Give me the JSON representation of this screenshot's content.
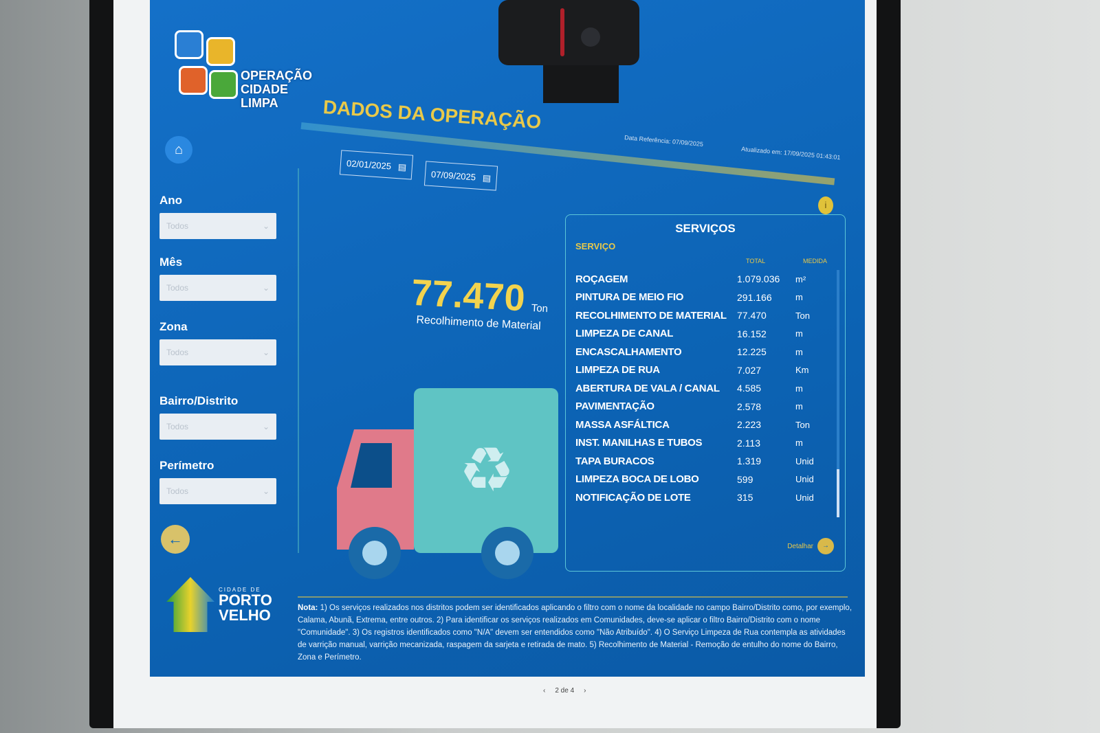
{
  "app": {
    "logo_text": "OPERAÇÃO CIDADE LIMPA",
    "title": "DADOS DA OPERAÇÃO"
  },
  "meta": {
    "data_referencia": "Data Referência: 07/09/2025",
    "atualizado": "Atualizado em: 17/09/2025 01:43:01"
  },
  "dates": {
    "start": "02/01/2025",
    "end": "07/09/2025"
  },
  "sidebar": {
    "filters": [
      {
        "label": "Ano",
        "value": "Todos"
      },
      {
        "label": "Mês",
        "value": "Todos"
      },
      {
        "label": "Zona",
        "value": "Todos"
      },
      {
        "label": "Bairro/Distrito",
        "value": "Todos"
      },
      {
        "label": "Perímetro",
        "value": "Todos"
      }
    ],
    "city_logo": {
      "small": "CIDADE DE",
      "line1": "PORTO",
      "line2": "VELHO"
    }
  },
  "kpi": {
    "value": "77.470",
    "unit": "Ton",
    "caption": "Recolhimento de Material"
  },
  "services": {
    "title": "SERVIÇOS",
    "col_service": "SERVIÇO",
    "col_total": "TOTAL",
    "col_unit": "MEDIDA",
    "rows": [
      {
        "name": "ROÇAGEM",
        "total": "1.079.036",
        "unit": "m²"
      },
      {
        "name": "PINTURA DE MEIO FIO",
        "total": "291.166",
        "unit": "m"
      },
      {
        "name": "RECOLHIMENTO DE MATERIAL",
        "total": "77.470",
        "unit": "Ton"
      },
      {
        "name": "LIMPEZA DE CANAL",
        "total": "16.152",
        "unit": "m"
      },
      {
        "name": "ENCASCALHAMENTO",
        "total": "12.225",
        "unit": "m"
      },
      {
        "name": "LIMPEZA DE RUA",
        "total": "7.027",
        "unit": "Km"
      },
      {
        "name": "ABERTURA DE VALA / CANAL",
        "total": "4.585",
        "unit": "m"
      },
      {
        "name": "PAVIMENTAÇÃO",
        "total": "2.578",
        "unit": "m"
      },
      {
        "name": "MASSA ASFÁLTICA",
        "total": "2.223",
        "unit": "Ton"
      },
      {
        "name": "INST. MANILHAS E TUBOS",
        "total": "2.113",
        "unit": "m"
      },
      {
        "name": "TAPA BURACOS",
        "total": "1.319",
        "unit": "Unid"
      },
      {
        "name": "LIMPEZA BOCA DE LOBO",
        "total": "599",
        "unit": "Unid"
      },
      {
        "name": "NOTIFICAÇÃO DE LOTE",
        "total": "315",
        "unit": "Unid"
      }
    ],
    "detail_label": "Detalhar"
  },
  "note": {
    "label": "Nota:",
    "text": "1) Os serviços realizados nos distritos podem ser identificados aplicando o filtro com o nome da localidade no campo Bairro/Distrito como, por exemplo, Calama, Abunã, Extrema, entre outros. 2) Para identificar os serviços realizados em Comunidades, deve-se aplicar o filtro Bairro/Distrito com o nome \"Comunidade\". 3) Os registros identificados como \"N/A\" devem ser entendidos como \"Não Atribuído\". 4) O Serviço Limpeza de Rua contempla as atividades de varrição manual, varrição mecanizada, raspagem da sarjeta e retirada de mato. 5) Recolhimento de Material - Remoção de entulho do nome do Bairro, Zona e Perímetro."
  },
  "pager": {
    "label": "2 de 4",
    "prev": "‹",
    "next": "›"
  },
  "colors": {
    "background": "#0c63b4",
    "accent": "#e8c94a",
    "border": "#5cc6d8"
  }
}
